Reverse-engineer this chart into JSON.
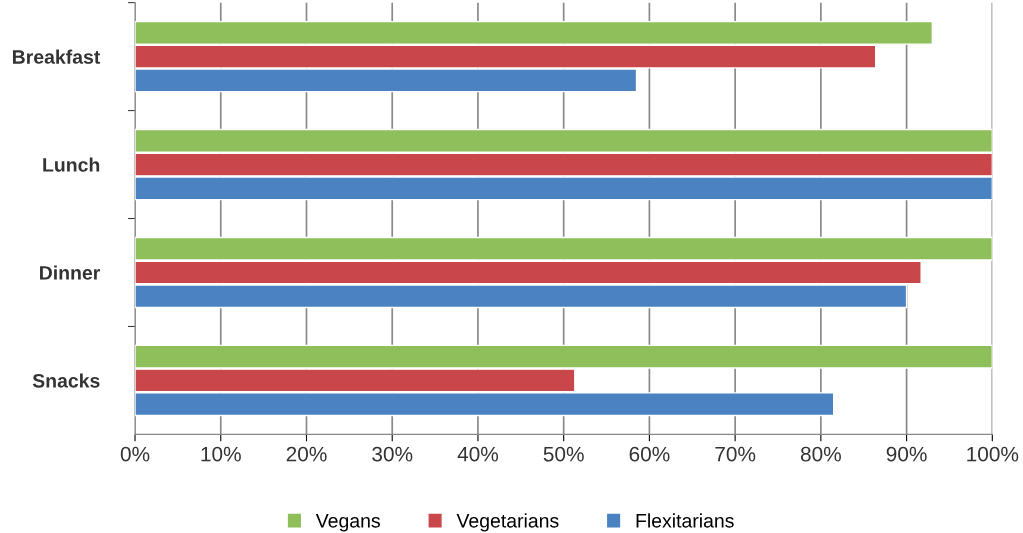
{
  "chart_data": {
    "type": "bar",
    "orientation": "horizontal",
    "categories": [
      "Breakfast",
      "Lunch",
      "Dinner",
      "Snacks"
    ],
    "series": [
      {
        "name": "Vegans",
        "color": "#8fbf5a",
        "values": [
          93,
          100,
          100,
          100
        ]
      },
      {
        "name": "Vegetarians",
        "color": "#c9474a",
        "values": [
          86.4,
          100,
          91.7,
          51.3
        ]
      },
      {
        "name": "Flexitarians",
        "color": "#4a82c2",
        "values": [
          58.5,
          100,
          90,
          81.5
        ]
      }
    ],
    "xlim": [
      0,
      100
    ],
    "xticks": [
      {
        "value": 0,
        "label": "0%"
      },
      {
        "value": 10,
        "label": "10%"
      },
      {
        "value": 20,
        "label": "20%"
      },
      {
        "value": 30,
        "label": "30%"
      },
      {
        "value": 40,
        "label": "40%"
      },
      {
        "value": 50,
        "label": "50%"
      },
      {
        "value": 60,
        "label": "60%"
      },
      {
        "value": 70,
        "label": "70%"
      },
      {
        "value": 80,
        "label": "80%"
      },
      {
        "value": 90,
        "label": "90%"
      },
      {
        "value": 100,
        "label": "100%"
      }
    ],
    "grid": "x",
    "legend": "bottom"
  }
}
